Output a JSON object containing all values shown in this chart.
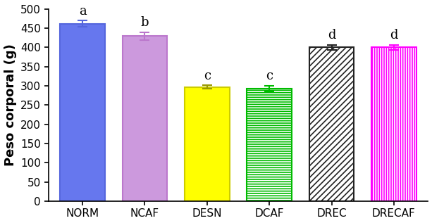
{
  "categories": [
    "NORM",
    "NCAF",
    "DESN",
    "DCAF",
    "DREC",
    "DRECAF"
  ],
  "values": [
    462,
    430,
    297,
    293,
    400,
    400
  ],
  "errors": [
    8,
    10,
    5,
    8,
    7,
    7
  ],
  "stat_labels": [
    "a",
    "b",
    "c",
    "c",
    "d",
    "d"
  ],
  "bar_facecolors": [
    "#6677ee",
    "#cc99dd",
    "#ffff00",
    "white",
    "white",
    "white"
  ],
  "bar_edgecolors": [
    "#5566dd",
    "#bb77cc",
    "#cccc00",
    "#00bb00",
    "#222222",
    "#ff00ff"
  ],
  "error_colors": [
    "#5566dd",
    "#bb77cc",
    "#999900",
    "#00bb00",
    "#222222",
    "#ff00ff"
  ],
  "hatch_patterns": [
    "",
    "",
    "",
    "-----",
    "////",
    "|||||"
  ],
  "hatch_colors": [
    "none",
    "none",
    "none",
    "#00bb00",
    "#333333",
    "#ff00ff"
  ],
  "ylabel": "Peso corporal (g)",
  "ylim": [
    0,
    500
  ],
  "yticks": [
    0,
    50,
    100,
    150,
    200,
    250,
    300,
    350,
    400,
    450,
    500
  ],
  "stat_label_fontsize": 13,
  "ylabel_fontsize": 13,
  "tick_fontsize": 11,
  "bar_width": 0.72,
  "figsize": [
    6.13,
    3.17
  ],
  "dpi": 100
}
